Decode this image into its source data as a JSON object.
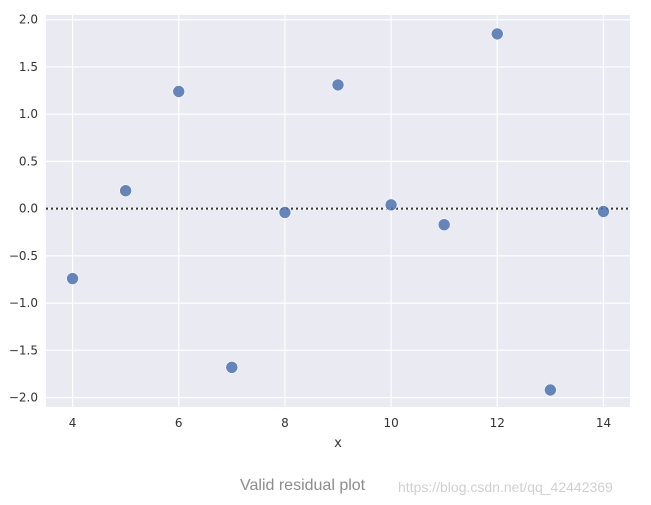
{
  "chart_data": {
    "type": "scatter",
    "title": "",
    "xlabel": "x",
    "ylabel": "",
    "xlim": [
      3.5,
      14.5
    ],
    "ylim": [
      -2.1,
      2.05
    ],
    "xticks": [
      4,
      6,
      8,
      10,
      12,
      14
    ],
    "xtick_labels": [
      "4",
      "6",
      "8",
      "10",
      "12",
      "14"
    ],
    "yticks": [
      2.0,
      1.5,
      1.0,
      0.5,
      0.0,
      -0.5,
      -1.0,
      -1.5,
      -2.0
    ],
    "ytick_labels": [
      "2.0",
      "1.5",
      "1.0",
      "0.5",
      "0.0",
      "−0.5",
      "−1.0",
      "−1.5",
      "−2.0"
    ],
    "grid": true,
    "reference_line": {
      "y": 0,
      "style": "dotted"
    },
    "series": [
      {
        "points": [
          {
            "x": 4,
            "y": -0.74
          },
          {
            "x": 5,
            "y": 0.19
          },
          {
            "x": 6,
            "y": 1.24
          },
          {
            "x": 7,
            "y": -1.68
          },
          {
            "x": 8,
            "y": -0.04
          },
          {
            "x": 9,
            "y": 1.31
          },
          {
            "x": 10,
            "y": 0.04
          },
          {
            "x": 11,
            "y": -0.17
          },
          {
            "x": 12,
            "y": 1.85
          },
          {
            "x": 13,
            "y": -1.92
          },
          {
            "x": 14,
            "y": -0.03
          }
        ]
      }
    ],
    "colors": {
      "background": "#eaeaf2",
      "grid": "#ffffff",
      "points": "#4c72b0",
      "reference_line": "#333333"
    }
  },
  "caption": "Valid residual plot",
  "watermark": "https://blog.csdn.net/qq_42442369"
}
